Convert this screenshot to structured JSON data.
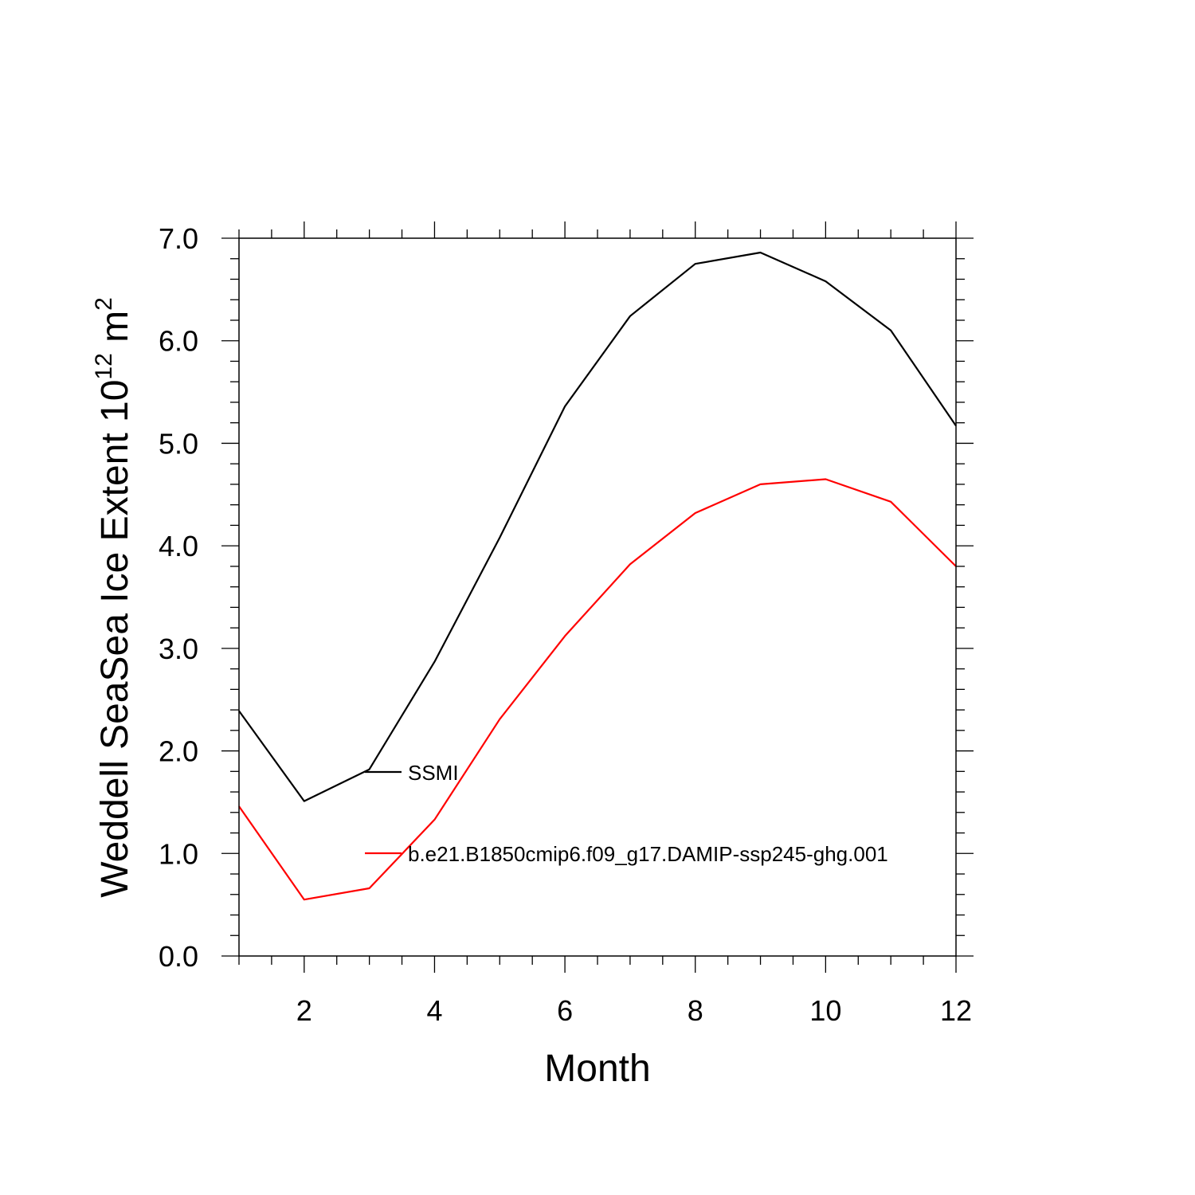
{
  "chart_data": {
    "type": "line",
    "title": "",
    "xlabel": "Month",
    "ylabel": {
      "text": "Weddell SeaSea Ice Extent 10",
      "superscript": "12",
      "unit": " m",
      "unit_superscript": "2"
    },
    "xlim": [
      1,
      12
    ],
    "ylim": [
      0.0,
      7.0
    ],
    "x_ticks": [
      2,
      4,
      6,
      8,
      10,
      12
    ],
    "x_tick_labels": [
      "2",
      "4",
      "6",
      "8",
      "10",
      "12"
    ],
    "y_ticks": [
      0,
      1,
      2,
      3,
      4,
      5,
      6,
      7
    ],
    "y_tick_labels": [
      "0.0",
      "1.0",
      "2.0",
      "3.0",
      "4.0",
      "5.0",
      "6.0",
      "7.0"
    ],
    "x": [
      1,
      2,
      3,
      4,
      5,
      6,
      7,
      8,
      9,
      10,
      11,
      12
    ],
    "grid": false,
    "legend_placement": "inside, center-left",
    "series": [
      {
        "name": "SSMI",
        "color": "#000000",
        "values": [
          2.39,
          1.51,
          1.82,
          2.87,
          4.08,
          5.36,
          6.24,
          6.75,
          6.86,
          6.58,
          6.1,
          5.17
        ]
      },
      {
        "name": "b.e21.B1850cmip6.f09_g17.DAMIP-ssp245-ghg.001",
        "color": "#ff0000",
        "values": [
          1.46,
          0.55,
          0.66,
          1.33,
          2.31,
          3.12,
          3.82,
          4.32,
          4.6,
          4.65,
          4.43,
          3.8
        ]
      }
    ]
  }
}
